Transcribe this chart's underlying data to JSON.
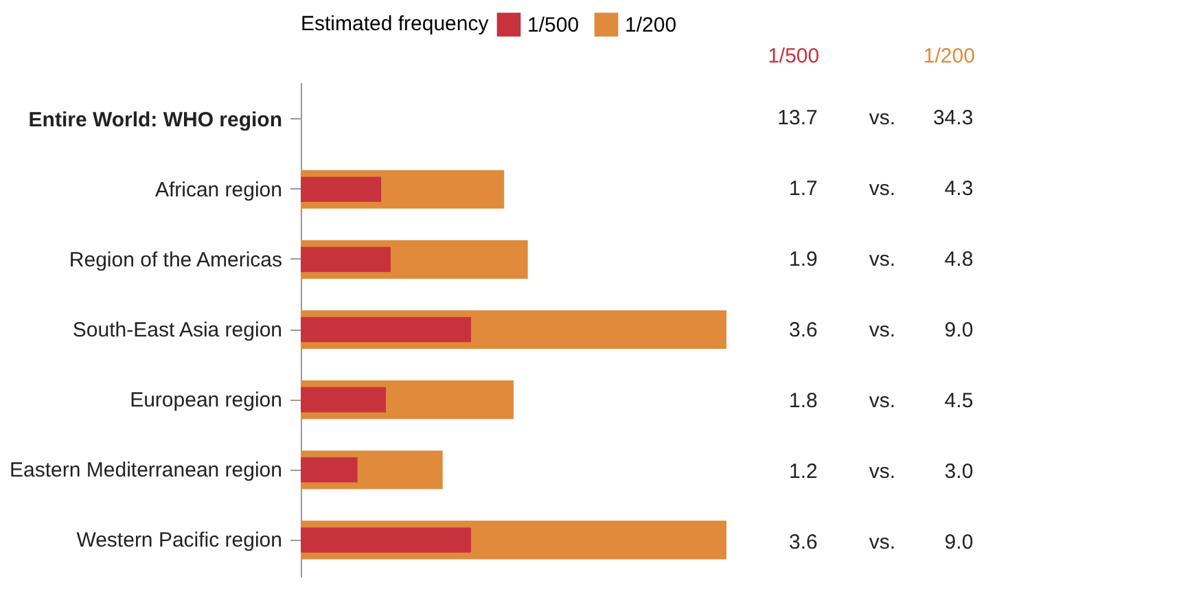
{
  "chart_data": {
    "type": "bar",
    "orientation": "horizontal",
    "legend_title": "Estimated frequency",
    "legend": "top",
    "tick_labels": "y",
    "grid": false,
    "categories": [
      "Entire World: WHO region",
      "African region",
      "Region of the Americas",
      "South-East Asia region",
      "European region",
      "Eastern Mediterranean region",
      "Western Pacific region"
    ],
    "series": [
      {
        "name": "1/500",
        "color": "#c8323c",
        "values": [
          null,
          1.7,
          1.9,
          3.6,
          1.8,
          1.2,
          3.6
        ],
        "value_labels": [
          "13.7",
          "1.7",
          "1.9",
          "3.6",
          "1.8",
          "1.2",
          "3.6"
        ]
      },
      {
        "name": "1/200",
        "color": "#e08a3c",
        "values": [
          null,
          4.3,
          4.8,
          9.0,
          4.5,
          3.0,
          9.0
        ],
        "value_labels": [
          "34.3",
          "4.3",
          "4.8",
          "9.0",
          "4.5",
          "3.0",
          "9.0"
        ]
      }
    ],
    "annotations": [
      "vs."
    ]
  }
}
